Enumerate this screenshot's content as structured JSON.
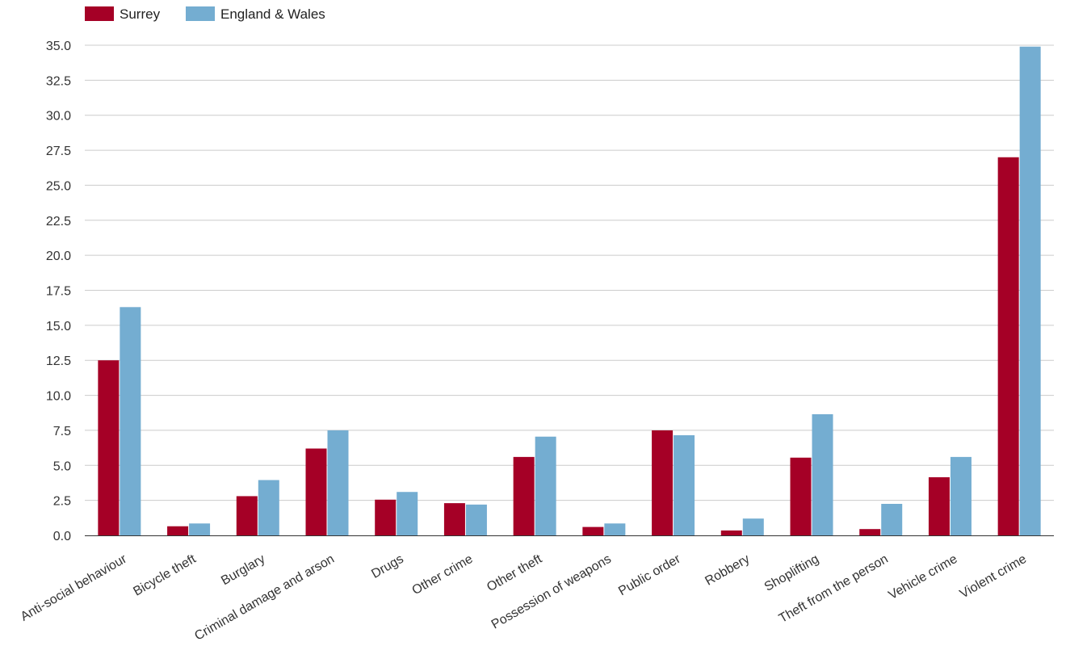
{
  "chart_data": {
    "type": "bar",
    "title": "",
    "xlabel": "",
    "ylabel": "",
    "ylim": [
      0,
      35
    ],
    "yticks": [
      "0.0",
      "2.5",
      "5.0",
      "7.5",
      "10.0",
      "12.5",
      "15.0",
      "17.5",
      "20.0",
      "22.5",
      "25.0",
      "27.5",
      "30.0",
      "32.5",
      "35.0"
    ],
    "grid": true,
    "legend_position": "top-left",
    "categories": [
      "Anti-social behaviour",
      "Bicycle theft",
      "Burglary",
      "Criminal damage and arson",
      "Drugs",
      "Other crime",
      "Other theft",
      "Possession of weapons",
      "Public order",
      "Robbery",
      "Shoplifting",
      "Theft from the person",
      "Vehicle crime",
      "Violent crime"
    ],
    "series": [
      {
        "name": "Surrey",
        "color": "#a50026",
        "values": [
          12.5,
          0.65,
          2.8,
          6.2,
          2.55,
          2.3,
          5.6,
          0.6,
          7.5,
          0.35,
          5.55,
          0.45,
          4.15,
          27.0
        ]
      },
      {
        "name": "England & Wales",
        "color": "#74add1",
        "values": [
          16.3,
          0.85,
          3.95,
          7.5,
          3.1,
          2.2,
          7.05,
          0.85,
          7.15,
          1.2,
          8.65,
          2.25,
          5.6,
          34.9
        ]
      }
    ]
  }
}
